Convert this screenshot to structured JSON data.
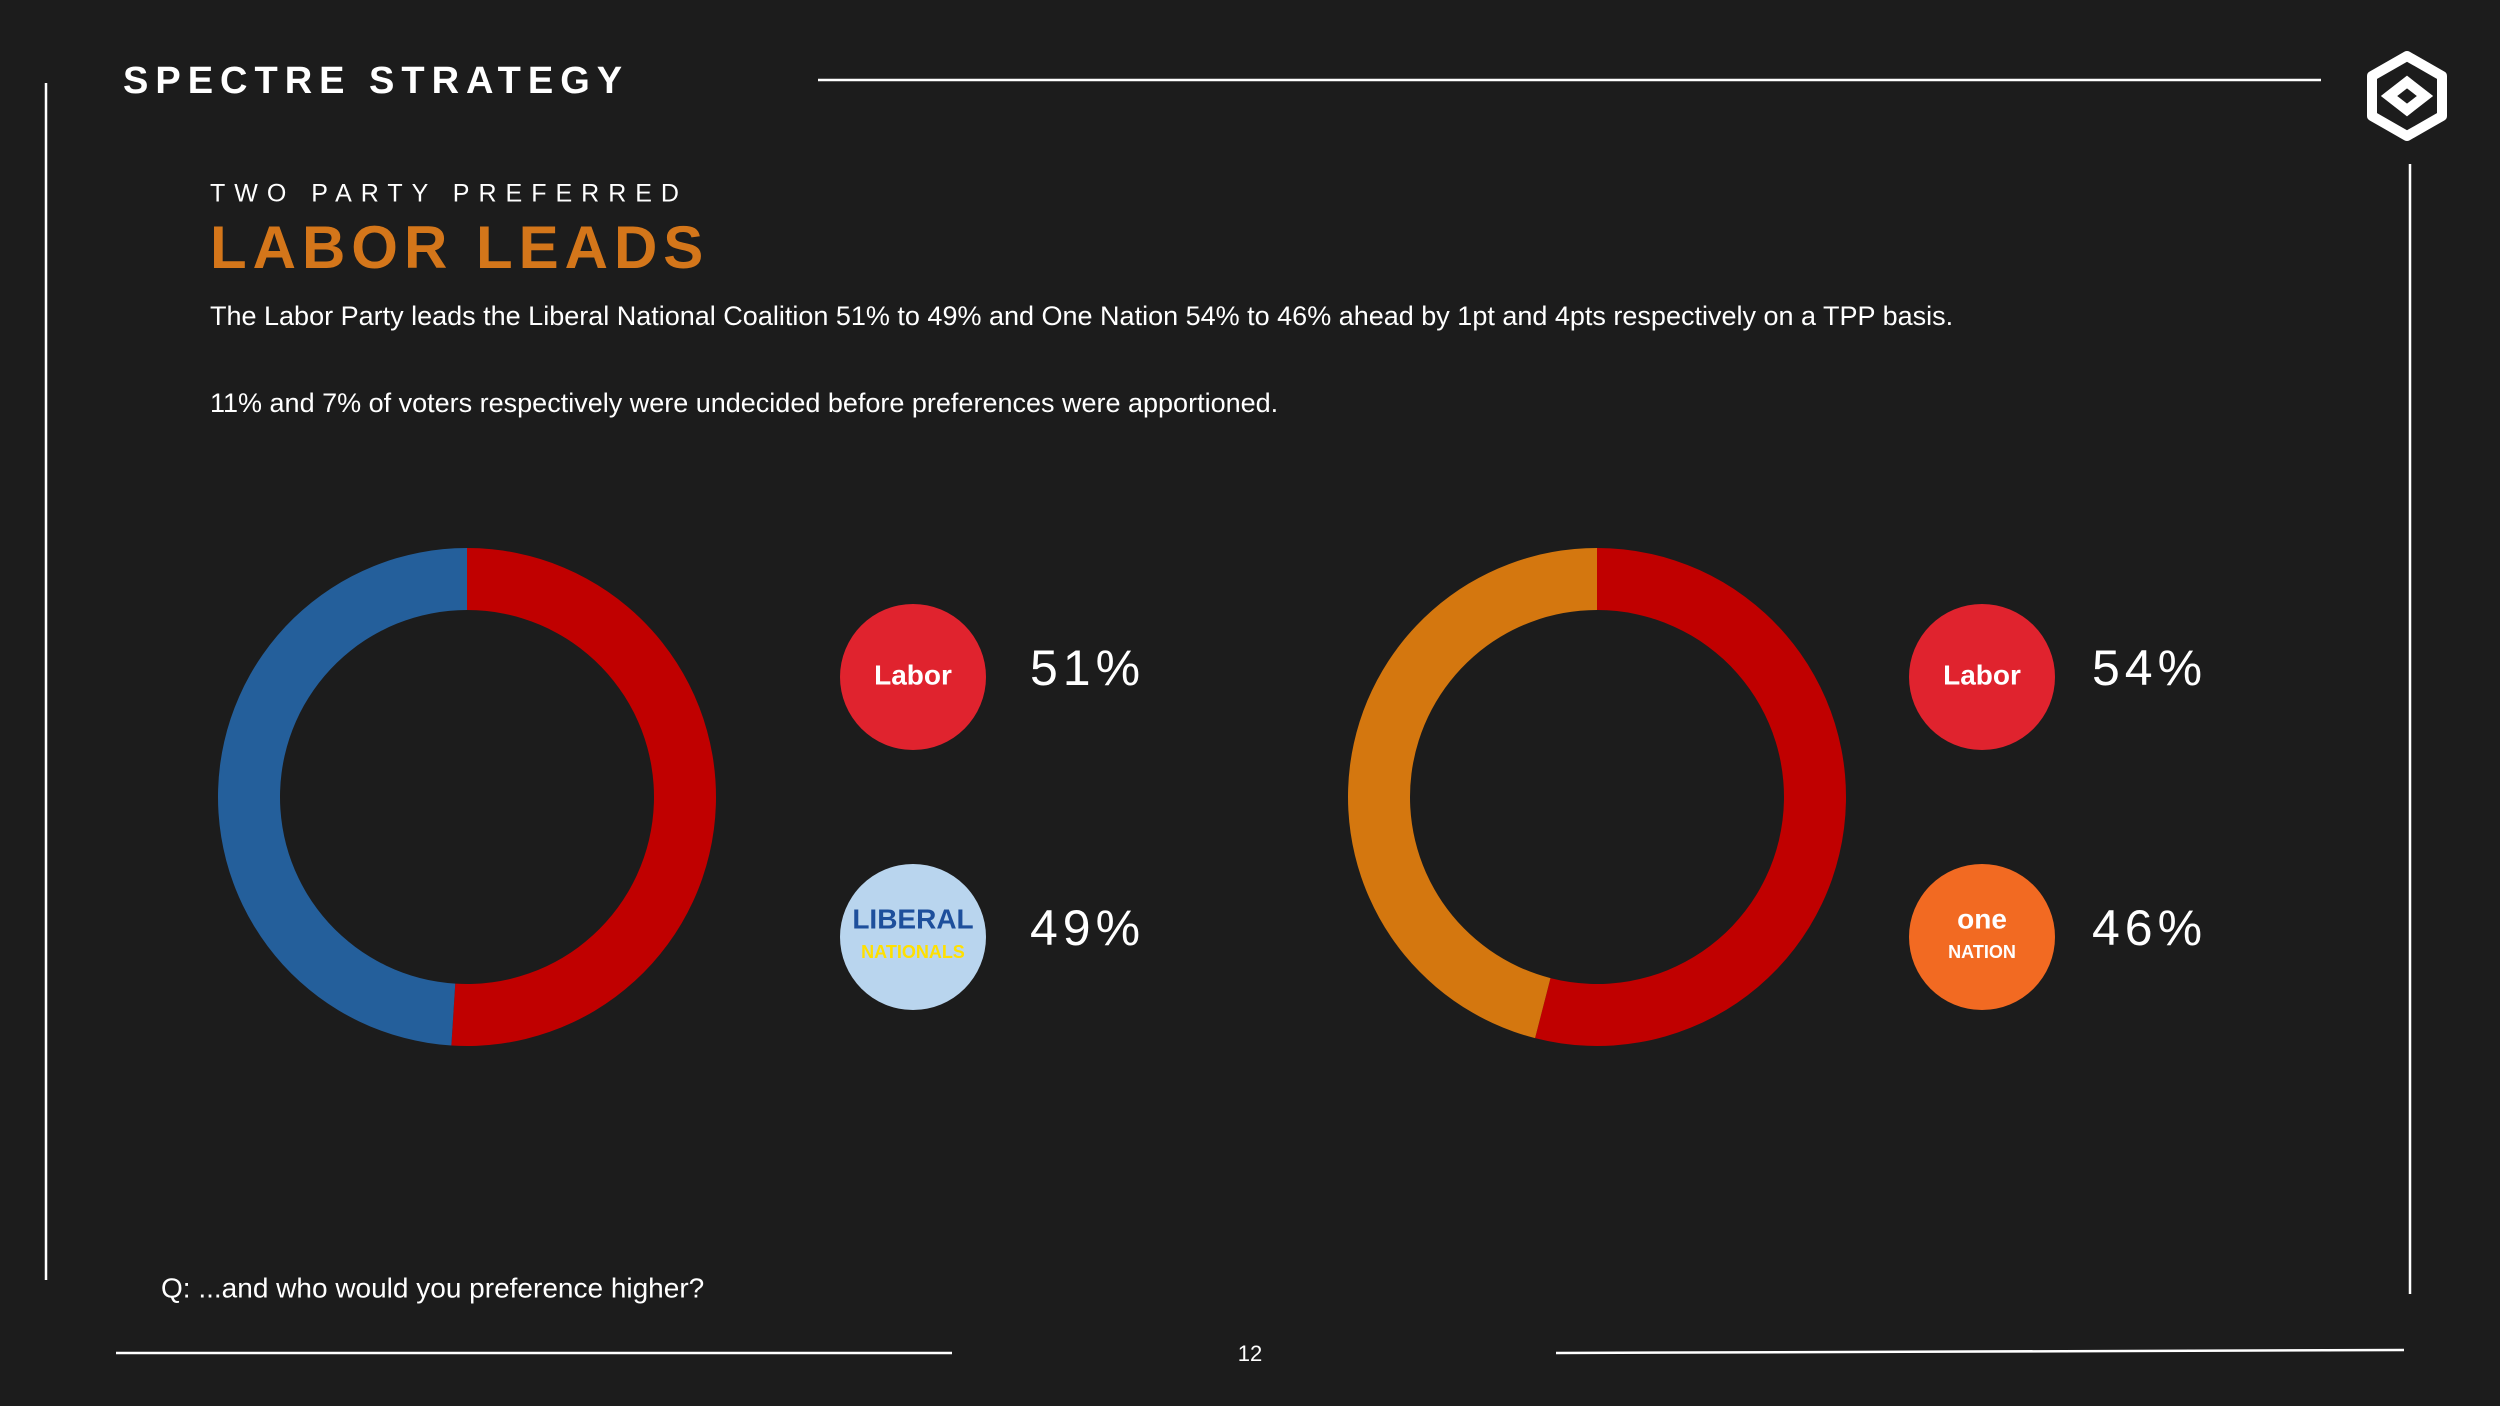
{
  "header": {
    "brand": "SPECTRE STRATEGY"
  },
  "kicker": "TWO PARTY PREFERRED",
  "title": "LABOR LEADS",
  "body": [
    "The Labor Party leads the Liberal National Coalition 51% to 49% and One Nation 54% to 46% ahead by 1pt and 4pts respectively on a TPP basis.",
    "11% and 7% of voters respectively were undecided before preferences were apportioned."
  ],
  "chart_data": [
    {
      "type": "pie",
      "donut": true,
      "values": [
        51,
        49
      ],
      "value_labels": [
        "51%",
        "49%"
      ],
      "colors": [
        "#c00000",
        "#245f9b"
      ],
      "logos": [
        [
          "Labor"
        ],
        [
          "LIBERAL",
          "NATIONALS"
        ]
      ],
      "logo_colors": [
        "#e0232e",
        "#b9d5ee"
      ]
    },
    {
      "type": "pie",
      "donut": true,
      "values": [
        54,
        46
      ],
      "value_labels": [
        "54%",
        "46%"
      ],
      "colors": [
        "#c00000",
        "#d4770f"
      ],
      "logos": [
        [
          "Labor"
        ],
        [
          "one",
          "NATION"
        ]
      ],
      "logo_colors": [
        "#e0232e",
        "#f26a22"
      ]
    }
  ],
  "question": "Q: ...and who would you preference higher?",
  "page_number": 12
}
